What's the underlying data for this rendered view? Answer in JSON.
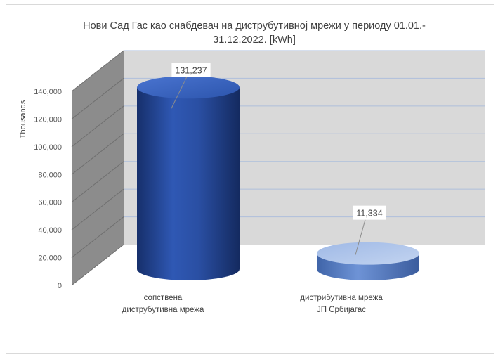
{
  "chart_data": {
    "type": "bar",
    "title_lines": [
      "Нови Сад Гас као снабдевач на диструбутивној мрежи у периоду 01.01.-",
      "31.12.2022.  [kWh]"
    ],
    "ylabel": "Thousands",
    "ylim": [
      0,
      140000
    ],
    "ytick_step": 20000,
    "yticks": [
      "0",
      "20,000",
      "40,000",
      "60,000",
      "80,000",
      "100,000",
      "120,000",
      "140,000"
    ],
    "categories": [
      [
        "сопствена",
        "диструбутивна мрежа"
      ],
      [
        "дистрибутивна мрежа",
        "ЈП Србијагас"
      ]
    ],
    "values": [
      131237,
      11334
    ],
    "data_labels": [
      "131,237",
      "11,334"
    ],
    "grid": true,
    "colors": {
      "bar1_dark": "#1c3a7e",
      "bar1_mid": "#3a64c4",
      "bar2_dark": "#4f76bd",
      "bar2_light": "#a9c1ea",
      "wall": "#d9d9d9",
      "side_wall": "#8c8c8c",
      "gridline": "#aebfdc"
    }
  }
}
